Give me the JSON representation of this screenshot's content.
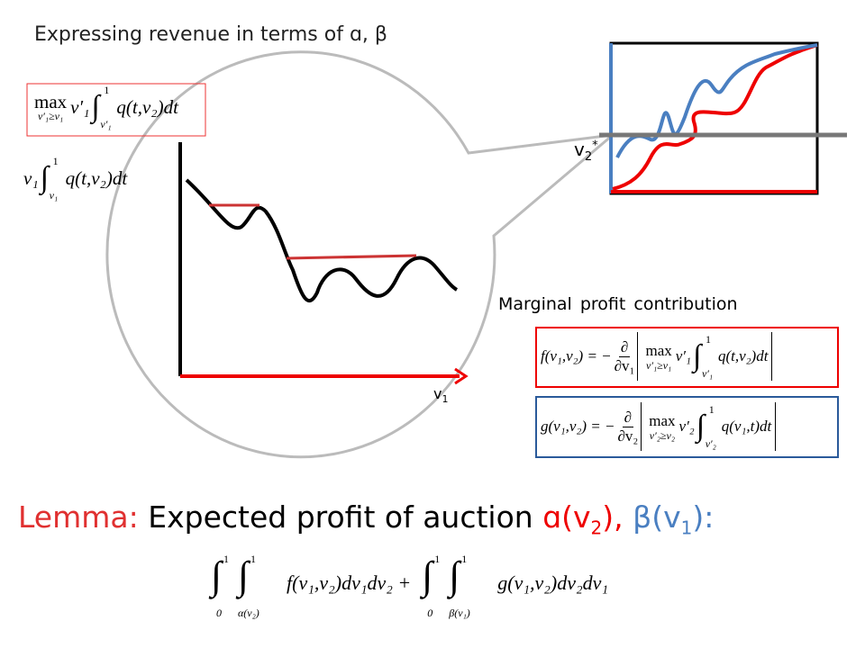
{
  "title": "Expressing revenue in terms of ɑ, β",
  "formulas": {
    "revenue_max": {
      "op": "max",
      "under": "v′₁≥v₁",
      "body": "v′₁",
      "int": "∫",
      "upper": "1",
      "lower": "v′₁",
      "integrand": "q(t,v₂)dt"
    },
    "revenue": {
      "body": "v₁",
      "int": "∫",
      "upper": "1",
      "lower": "v₁",
      "integrand": "q(t,v₂)dt"
    },
    "f": {
      "lhs": "f(v₁,v₂) = −",
      "num": "∂",
      "den": "∂v₁",
      "op": "max",
      "under": "v′₁≥v₁",
      "body": "v′₁",
      "int": "∫",
      "upper": "1",
      "lower": "v′₁",
      "integrand": "q(t,v₂)dt"
    },
    "g": {
      "lhs": "g(v₁,v₂) = −",
      "num": "∂",
      "den": "∂v₂",
      "op": "max",
      "under": "v′₂≥v₂",
      "body": "v′₂",
      "int": "∫",
      "upper": "1",
      "lower": "v′₂",
      "integrand": "q(v₁,t)dt"
    }
  },
  "diagram": {
    "axis_label": {
      "v": "v",
      "sub": "1"
    },
    "threshold_label": {
      "v": "v",
      "sub": "2",
      "sup": "*"
    }
  },
  "marginal_title": "Marginal profit contribution",
  "lemma": {
    "label": "Lemma:",
    "text": "Expected profit of auction",
    "alpha": "ɑ(v",
    "alpha_sub": "2",
    "alpha_close": "),",
    "beta": "β(v",
    "beta_sub": "1",
    "beta_close": "):"
  },
  "expected_profit": {
    "int": "∫",
    "upper": "1",
    "outer_lower": "0",
    "alpha_lower": "α(v₂)",
    "beta_lower": "β(v₁)",
    "f_term": "f(v₁,v₂)dv₁dv₂ +",
    "g_term": "g(v₁,v₂)dv₂dv₁"
  }
}
